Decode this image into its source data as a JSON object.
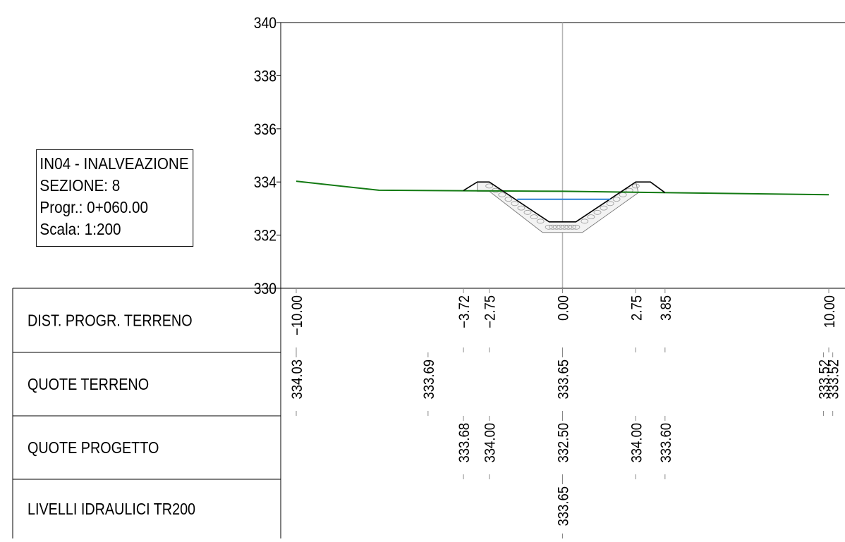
{
  "info": {
    "line1": "IN04 - INALVEAZIONE",
    "line2": "SEZIONE: 8",
    "line3": "Progr.: 0+060.00",
    "line4": "Scala: 1:200"
  },
  "chart_data": {
    "type": "line",
    "title": "",
    "xlabel": "",
    "ylabel": "",
    "xlim": [
      -10.8,
      10.6
    ],
    "ylim": [
      330,
      340
    ],
    "y_ticks": [
      330,
      332,
      334,
      336,
      338,
      340
    ],
    "series": [
      {
        "points": [
          [
            -10.0,
            334.03
          ],
          [
            -6.9,
            333.69
          ],
          [
            0.0,
            333.65
          ],
          [
            10.0,
            333.52
          ]
        ],
        "color": "#137a13"
      },
      {
        "points": [
          [
            -3.72,
            333.68
          ],
          [
            -3.2,
            334.0
          ],
          [
            -2.75,
            334.0
          ],
          [
            -0.5,
            332.5
          ],
          [
            0.5,
            332.5
          ],
          [
            2.75,
            334.0
          ],
          [
            3.3,
            334.0
          ],
          [
            3.85,
            333.6
          ]
        ],
        "color": "#000000"
      },
      {
        "points": [
          [
            -1.7,
            333.35
          ],
          [
            1.8,
            333.35
          ]
        ],
        "color": "#2a7fd4"
      }
    ],
    "lining": {
      "outer": [
        [
          -3.2,
          334.0
        ],
        [
          -3.2,
          333.65
        ],
        [
          -2.75,
          333.65
        ],
        [
          -0.75,
          332.1
        ],
        [
          0.75,
          332.1
        ],
        [
          2.85,
          333.6
        ],
        [
          2.75,
          334.0
        ],
        [
          0.5,
          332.5
        ],
        [
          -0.5,
          332.5
        ],
        [
          -2.75,
          334.0
        ]
      ],
      "color": "#808080"
    },
    "table": {
      "rows": [
        {
          "label": "DIST. PROGR. TERRENO",
          "entries": [
            {
              "x": -10.0,
              "text": "−10.00"
            },
            {
              "x": -3.72,
              "text": "−3.72"
            },
            {
              "x": -2.75,
              "text": "−2.75"
            },
            {
              "x": 0.0,
              "text": "0.00"
            },
            {
              "x": 2.75,
              "text": "2.75"
            },
            {
              "x": 3.85,
              "text": "3.85"
            },
            {
              "x": 10.0,
              "text": "10.00"
            }
          ]
        },
        {
          "label": "QUOTE TERRENO",
          "entries": [
            {
              "x": -10.0,
              "text": "334.03"
            },
            {
              "x": -5.05,
              "text": "333.69"
            },
            {
              "x": 0.0,
              "text": "333.65"
            },
            {
              "x": 9.8,
              "text": "333.52"
            },
            {
              "x": 10.15,
              "text": "333.52"
            }
          ]
        },
        {
          "label": "QUOTE PROGETTO",
          "entries": [
            {
              "x": -3.72,
              "text": "333.68"
            },
            {
              "x": -2.75,
              "text": "334.00"
            },
            {
              "x": 0.0,
              "text": "332.50"
            },
            {
              "x": 2.75,
              "text": "334.00"
            },
            {
              "x": 3.85,
              "text": "333.60"
            }
          ]
        },
        {
          "label": "LIVELLI IDRAULICI TR200",
          "entries": [
            {
              "x": 0.0,
              "text": "333.65"
            }
          ]
        }
      ]
    }
  }
}
